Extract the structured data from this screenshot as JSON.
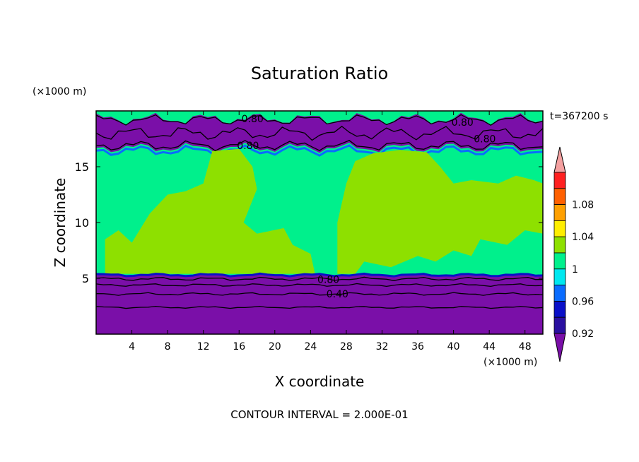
{
  "chart_data": {
    "type": "heatmap",
    "title": "Saturation Ratio",
    "xlabel": "X coordinate",
    "ylabel": "Z coordinate",
    "x_unit": "(×1000 m)",
    "y_unit": "(×1000 m)",
    "time_label": "t=367200 s",
    "footer": "CONTOUR INTERVAL = 2.000E-01",
    "xlim": [
      0,
      50
    ],
    "ylim": [
      0,
      20
    ],
    "x_ticks": [
      4,
      8,
      12,
      16,
      20,
      24,
      28,
      32,
      36,
      40,
      44,
      48
    ],
    "y_ticks": [
      5,
      10,
      15
    ],
    "colorbar": {
      "levels": [
        {
          "label": "",
          "color": "#7a0fa8"
        },
        {
          "label": "0.92",
          "color": "#2a10a0"
        },
        {
          "label": "",
          "color": "#0a10c8"
        },
        {
          "label": "0.96",
          "color": "#0a6cff"
        },
        {
          "label": "",
          "color": "#00e8f0"
        },
        {
          "label": "1",
          "color": "#00f08c"
        },
        {
          "label": "",
          "color": "#8ee000"
        },
        {
          "label": "1.04",
          "color": "#ffee00"
        },
        {
          "label": "",
          "color": "#ffa000"
        },
        {
          "label": "1.08",
          "color": "#ff6000"
        },
        {
          "label": "",
          "color": "#ff2020"
        },
        {
          "label": "",
          "color": "#f4a0a0"
        }
      ]
    },
    "contour_labels": [
      {
        "text": "0.80",
        "x": 17.5,
        "z": 19.3
      },
      {
        "text": "0.80",
        "x": 41.0,
        "z": 19.0
      },
      {
        "text": "0.80",
        "x": 43.5,
        "z": 17.5
      },
      {
        "text": "0.80",
        "x": 17.0,
        "z": 16.9
      },
      {
        "text": "0.80",
        "x": 26.0,
        "z": 4.9
      },
      {
        "text": "0.40",
        "x": 27.0,
        "z": 3.6
      }
    ],
    "regions": {
      "purple_bottom_top_z": 5.3,
      "upper_purple_band_z": [
        16.7,
        19.3
      ],
      "green_upper_z": [
        12.6,
        16.7
      ],
      "top_green_z": [
        19.3,
        20
      ]
    }
  }
}
